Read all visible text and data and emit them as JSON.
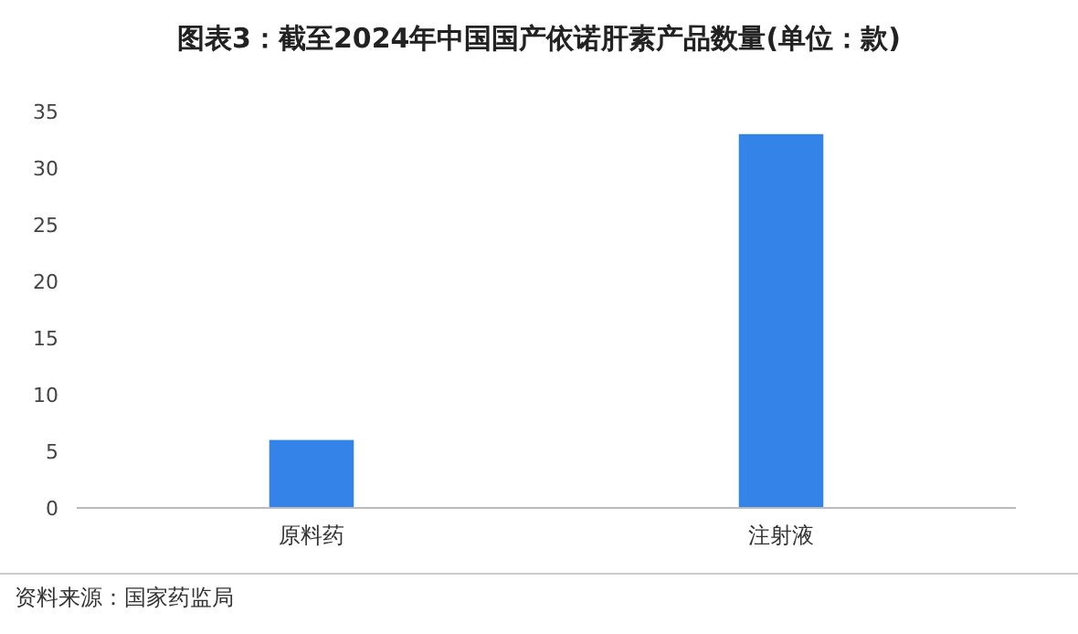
{
  "chart_data": {
    "type": "bar",
    "title": "图表3：截至2024年中国国产依诺肝素产品数量(单位：款)",
    "categories": [
      "原料药",
      "注射液"
    ],
    "values": [
      6,
      33
    ],
    "color": "#3483e8",
    "ylim": [
      0,
      35
    ],
    "yticks": [
      0,
      5,
      10,
      15,
      20,
      25,
      30,
      35
    ],
    "grid": false,
    "annotations": [
      "资料来源：国家药监局"
    ]
  }
}
